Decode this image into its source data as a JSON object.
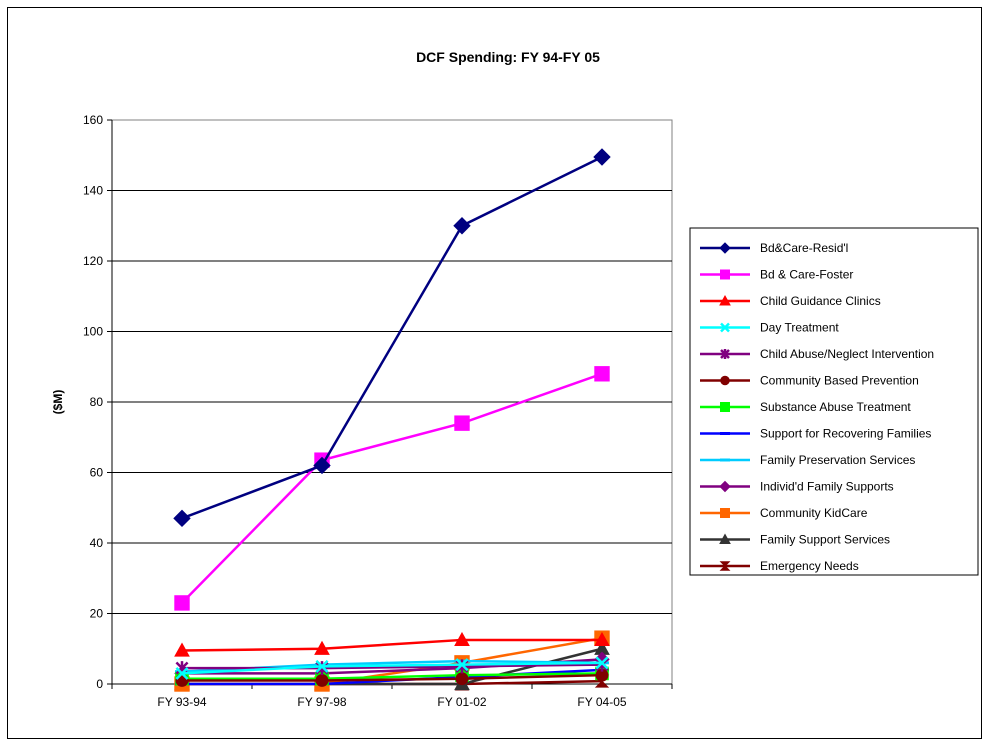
{
  "chart_data": {
    "type": "line",
    "title": "DCF Spending: FY 94-FY 05",
    "xlabel": "",
    "ylabel": "($M)",
    "categories": [
      "FY 93-94",
      "FY 97-98",
      "FY 01-02",
      "FY 04-05"
    ],
    "ylim": [
      0,
      160
    ],
    "yticks": [
      0,
      20,
      40,
      60,
      80,
      100,
      120,
      140,
      160
    ],
    "grid": true,
    "legend": "right",
    "series": [
      {
        "name": "Bd&Care-Resid'l",
        "color": "#000080",
        "marker": "diamond",
        "values": [
          47,
          62,
          130,
          149.5
        ]
      },
      {
        "name": "Bd & Care-Foster",
        "color": "#ff00ff",
        "marker": "square",
        "values": [
          23,
          63.5,
          74,
          88
        ]
      },
      {
        "name": "Child Guidance Clinics",
        "color": "#ff0000",
        "marker": "triangle",
        "values": [
          9.5,
          10,
          12.5,
          12.5
        ]
      },
      {
        "name": "Day Treatment",
        "color": "#00ffff",
        "marker": "x",
        "values": [
          3,
          5,
          5.5,
          6
        ]
      },
      {
        "name": "Child Abuse/Neglect Intervention",
        "color": "#800080",
        "marker": "star",
        "values": [
          4.5,
          4.5,
          5,
          5.5
        ]
      },
      {
        "name": "Community Based Prevention",
        "color": "#800000",
        "marker": "circle",
        "values": [
          1,
          1,
          1.5,
          2.5
        ]
      },
      {
        "name": "Substance Abuse Treatment",
        "color": "#00ff00",
        "marker": "square",
        "values": [
          1.5,
          1.5,
          2.5,
          3
        ]
      },
      {
        "name": "Support for Recovering Families",
        "color": "#0000ff",
        "marker": "dash",
        "values": [
          0,
          0,
          2,
          4
        ]
      },
      {
        "name": "Family Preservation Services",
        "color": "#00ccff",
        "marker": "dash",
        "values": [
          3.5,
          5.5,
          6.5,
          6
        ]
      },
      {
        "name": "Individ'd Family Supports",
        "color": "#800080",
        "marker": "diamond",
        "values": [
          3,
          3,
          4.5,
          7
        ]
      },
      {
        "name": "Community KidCare",
        "color": "#ff6600",
        "marker": "square",
        "values": [
          0,
          0,
          6,
          13
        ]
      },
      {
        "name": "Family Support Services",
        "color": "#333333",
        "marker": "triangle",
        "values": [
          0,
          0,
          0,
          10
        ]
      },
      {
        "name": "Emergency Needs",
        "color": "#800000",
        "marker": "bowtie",
        "values": [
          0,
          0,
          0,
          0.8
        ]
      }
    ]
  }
}
